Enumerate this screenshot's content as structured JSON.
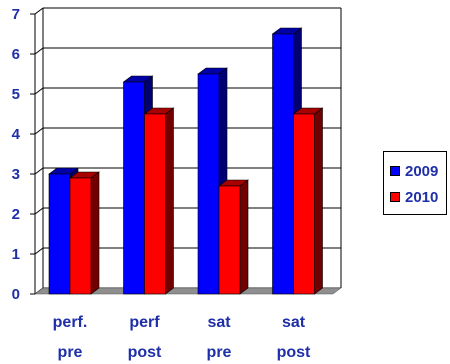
{
  "chart_data": {
    "type": "bar",
    "title": "",
    "xlabel": "",
    "ylabel": "",
    "categories": [
      [
        "perf.",
        "pre"
      ],
      [
        "perf",
        "post"
      ],
      [
        "sat",
        "pre"
      ],
      [
        "sat",
        "post"
      ]
    ],
    "series": [
      {
        "name": "2009",
        "values": [
          3.0,
          5.3,
          5.5,
          6.5
        ],
        "color": "#0000ff"
      },
      {
        "name": "2010",
        "values": [
          2.9,
          4.5,
          2.7,
          4.5
        ],
        "color": "#ff0000"
      }
    ],
    "ylim": [
      0,
      7
    ],
    "yticks": [
      "0",
      "1",
      "2",
      "3",
      "4",
      "5",
      "6",
      "7"
    ],
    "grid": true,
    "legend_position": "right",
    "style": "3d"
  }
}
